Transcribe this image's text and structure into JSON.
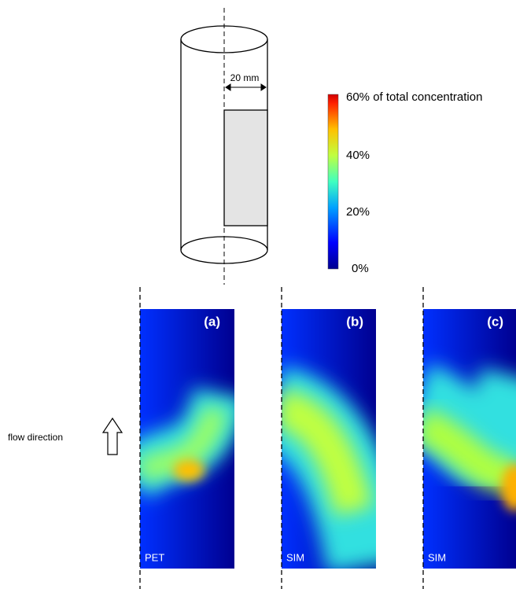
{
  "geometry": {
    "dimension_label": "20 mm"
  },
  "colorbar": {
    "labels": [
      "60% of total concentration",
      "40%",
      "20%",
      "0%"
    ]
  },
  "flow_label": "flow direction",
  "panels": [
    {
      "letter": "(a)",
      "source": "PET"
    },
    {
      "letter": "(b)",
      "source": "SIM"
    },
    {
      "letter": "(c)",
      "source": "SIM"
    }
  ]
}
